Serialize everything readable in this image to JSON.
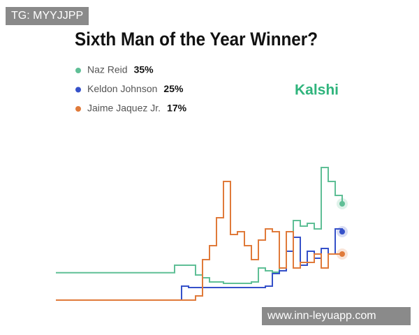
{
  "chart_data": {
    "type": "line",
    "title": "Sixth Man of the Year Winner?",
    "brand": "Kalshi",
    "ylim": [
      0,
      50
    ],
    "series": [
      {
        "name": "Naz Reid",
        "label": "35%",
        "color": "#5fbf96",
        "values": [
          10.3,
          10.3,
          10.3,
          10.3,
          10.3,
          10.3,
          10.3,
          10.3,
          10.3,
          10.3,
          10.3,
          10.3,
          10.3,
          10.3,
          10.3,
          10.3,
          10.3,
          13,
          13,
          13,
          9.5,
          8.5,
          7,
          7,
          6.5,
          6.5,
          6.5,
          6.5,
          7,
          12,
          11,
          10.5,
          12,
          25,
          29,
          27,
          28,
          26,
          48,
          43,
          38,
          35
        ]
      },
      {
        "name": "Keldon Johnson",
        "label": "25%",
        "color": "#3551c9",
        "values": [
          0.5,
          0.5,
          0.5,
          0.5,
          0.5,
          0.5,
          0.5,
          0.5,
          0.5,
          0.5,
          0.5,
          0.5,
          0.5,
          0.5,
          0.5,
          0.5,
          0.5,
          0.5,
          5.5,
          5,
          5,
          5,
          5,
          5,
          5,
          5,
          5,
          5,
          5,
          5,
          5.5,
          10,
          11,
          18,
          23,
          13,
          18,
          15.5,
          19,
          17,
          26,
          25
        ]
      },
      {
        "name": "Jaime Jaquez Jr.",
        "label": "17%",
        "color": "#e07a3a",
        "values": [
          0.5,
          0.5,
          0.5,
          0.5,
          0.5,
          0.5,
          0.5,
          0.5,
          0.5,
          0.5,
          0.5,
          0.5,
          0.5,
          0.5,
          0.5,
          0.5,
          0.5,
          0.5,
          0.5,
          0.5,
          2,
          15,
          20,
          30,
          43,
          24,
          25,
          20,
          15,
          22,
          26,
          25,
          12,
          25,
          12,
          14,
          14,
          17,
          12,
          17,
          17,
          17
        ]
      }
    ]
  },
  "watermarks": [
    "TG: MYYJJPP",
    "www.inn-leyuapp.com"
  ]
}
